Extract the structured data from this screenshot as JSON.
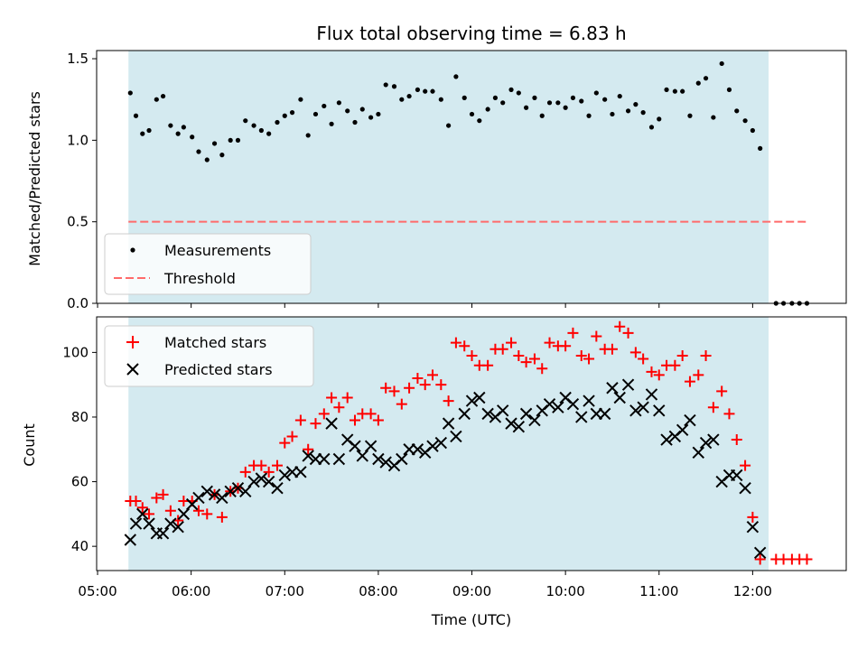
{
  "chart_data": {
    "type": "scatter",
    "title": "Flux total observing time = 6.83 h",
    "xlabel": "Time (UTC)",
    "x_ticks": [
      "05:00",
      "06:00",
      "07:00",
      "08:00",
      "09:00",
      "10:00",
      "11:00",
      "12:00"
    ],
    "xlim_hours": [
      4.99,
      13.0
    ],
    "observing_window_hours": [
      5.33,
      12.17
    ],
    "colors": {
      "window": "#d4eaf0",
      "measurement": "#000000",
      "threshold": "#ff6a6a",
      "matched": "#ff0000",
      "predicted": "#000000"
    },
    "top": {
      "ylabel": "Matched/Predicted stars",
      "ylim": [
        0,
        1.55
      ],
      "y_ticks": [
        "0.0",
        "0.5",
        "1.0",
        "1.5"
      ],
      "threshold_value": 0.5,
      "threshold_x_range": [
        5.33,
        12.6
      ],
      "legend": {
        "measurements": "Measurements",
        "threshold": "Threshold"
      },
      "measurements": [
        [
          5.35,
          1.29
        ],
        [
          5.41,
          1.15
        ],
        [
          5.48,
          1.04
        ],
        [
          5.55,
          1.06
        ],
        [
          5.63,
          1.25
        ],
        [
          5.7,
          1.27
        ],
        [
          5.78,
          1.09
        ],
        [
          5.86,
          1.04
        ],
        [
          5.92,
          1.08
        ],
        [
          6.01,
          1.02
        ],
        [
          6.08,
          0.93
        ],
        [
          6.17,
          0.88
        ],
        [
          6.25,
          0.98
        ],
        [
          6.33,
          0.91
        ],
        [
          6.42,
          1.0
        ],
        [
          6.5,
          1.0
        ],
        [
          6.58,
          1.12
        ],
        [
          6.67,
          1.09
        ],
        [
          6.75,
          1.06
        ],
        [
          6.83,
          1.04
        ],
        [
          6.92,
          1.11
        ],
        [
          7.0,
          1.15
        ],
        [
          7.08,
          1.17
        ],
        [
          7.17,
          1.25
        ],
        [
          7.25,
          1.03
        ],
        [
          7.33,
          1.16
        ],
        [
          7.42,
          1.21
        ],
        [
          7.5,
          1.1
        ],
        [
          7.58,
          1.23
        ],
        [
          7.67,
          1.18
        ],
        [
          7.75,
          1.11
        ],
        [
          7.83,
          1.19
        ],
        [
          7.92,
          1.14
        ],
        [
          8.0,
          1.16
        ],
        [
          8.08,
          1.34
        ],
        [
          8.17,
          1.33
        ],
        [
          8.25,
          1.25
        ],
        [
          8.33,
          1.27
        ],
        [
          8.42,
          1.31
        ],
        [
          8.5,
          1.3
        ],
        [
          8.58,
          1.3
        ],
        [
          8.67,
          1.25
        ],
        [
          8.75,
          1.09
        ],
        [
          8.83,
          1.39
        ],
        [
          8.92,
          1.26
        ],
        [
          9.0,
          1.16
        ],
        [
          9.08,
          1.12
        ],
        [
          9.17,
          1.19
        ],
        [
          9.25,
          1.26
        ],
        [
          9.33,
          1.23
        ],
        [
          9.42,
          1.31
        ],
        [
          9.5,
          1.29
        ],
        [
          9.58,
          1.2
        ],
        [
          9.67,
          1.26
        ],
        [
          9.75,
          1.15
        ],
        [
          9.83,
          1.23
        ],
        [
          9.92,
          1.23
        ],
        [
          10.0,
          1.2
        ],
        [
          10.08,
          1.26
        ],
        [
          10.17,
          1.24
        ],
        [
          10.25,
          1.15
        ],
        [
          10.33,
          1.29
        ],
        [
          10.42,
          1.25
        ],
        [
          10.5,
          1.16
        ],
        [
          10.58,
          1.27
        ],
        [
          10.67,
          1.18
        ],
        [
          10.75,
          1.22
        ],
        [
          10.83,
          1.17
        ],
        [
          10.92,
          1.08
        ],
        [
          11.0,
          1.13
        ],
        [
          11.08,
          1.31
        ],
        [
          11.17,
          1.3
        ],
        [
          11.25,
          1.3
        ],
        [
          11.33,
          1.15
        ],
        [
          11.42,
          1.35
        ],
        [
          11.5,
          1.38
        ],
        [
          11.58,
          1.14
        ],
        [
          11.67,
          1.47
        ],
        [
          11.75,
          1.31
        ],
        [
          11.83,
          1.18
        ],
        [
          11.92,
          1.12
        ],
        [
          12.0,
          1.06
        ],
        [
          12.08,
          0.95
        ],
        [
          12.25,
          0.0
        ],
        [
          12.33,
          0.0
        ],
        [
          12.42,
          0.0
        ],
        [
          12.5,
          0.0
        ],
        [
          12.58,
          0.0
        ]
      ]
    },
    "bottom": {
      "ylabel": "Count",
      "ylim": [
        32.5,
        111
      ],
      "y_ticks": [
        "40",
        "60",
        "80",
        "100"
      ],
      "legend": {
        "matched": "Matched stars",
        "predicted": "Predicted stars"
      },
      "matched": [
        [
          5.35,
          54
        ],
        [
          5.41,
          54
        ],
        [
          5.48,
          52
        ],
        [
          5.55,
          50
        ],
        [
          5.63,
          55
        ],
        [
          5.7,
          56
        ],
        [
          5.78,
          51
        ],
        [
          5.86,
          48
        ],
        [
          5.92,
          54
        ],
        [
          6.01,
          54
        ],
        [
          6.08,
          51
        ],
        [
          6.17,
          50
        ],
        [
          6.25,
          56
        ],
        [
          6.33,
          49
        ],
        [
          6.42,
          57
        ],
        [
          6.5,
          58
        ],
        [
          6.58,
          63
        ],
        [
          6.67,
          65
        ],
        [
          6.75,
          65
        ],
        [
          6.83,
          63
        ],
        [
          6.92,
          65
        ],
        [
          7.0,
          72
        ],
        [
          7.08,
          74
        ],
        [
          7.17,
          79
        ],
        [
          7.25,
          70
        ],
        [
          7.33,
          78
        ],
        [
          7.42,
          81
        ],
        [
          7.5,
          86
        ],
        [
          7.58,
          83
        ],
        [
          7.67,
          86
        ],
        [
          7.75,
          79
        ],
        [
          7.83,
          81
        ],
        [
          7.92,
          81
        ],
        [
          8.0,
          79
        ],
        [
          8.08,
          89
        ],
        [
          8.17,
          88
        ],
        [
          8.25,
          84
        ],
        [
          8.33,
          89
        ],
        [
          8.42,
          92
        ],
        [
          8.5,
          90
        ],
        [
          8.58,
          93
        ],
        [
          8.67,
          90
        ],
        [
          8.75,
          85
        ],
        [
          8.83,
          103
        ],
        [
          8.92,
          102
        ],
        [
          9.0,
          99
        ],
        [
          9.08,
          96
        ],
        [
          9.17,
          96
        ],
        [
          9.25,
          101
        ],
        [
          9.33,
          101
        ],
        [
          9.42,
          103
        ],
        [
          9.5,
          99
        ],
        [
          9.58,
          97
        ],
        [
          9.67,
          98
        ],
        [
          9.75,
          95
        ],
        [
          9.83,
          103
        ],
        [
          9.92,
          102
        ],
        [
          10.0,
          102
        ],
        [
          10.08,
          106
        ],
        [
          10.17,
          99
        ],
        [
          10.25,
          98
        ],
        [
          10.33,
          105
        ],
        [
          10.42,
          101
        ],
        [
          10.5,
          101
        ],
        [
          10.58,
          108
        ],
        [
          10.67,
          106
        ],
        [
          10.75,
          100
        ],
        [
          10.83,
          98
        ],
        [
          10.92,
          94
        ],
        [
          11.0,
          93
        ],
        [
          11.08,
          96
        ],
        [
          11.17,
          96
        ],
        [
          11.25,
          99
        ],
        [
          11.33,
          91
        ],
        [
          11.42,
          93
        ],
        [
          11.5,
          99
        ],
        [
          11.58,
          83
        ],
        [
          11.67,
          88
        ],
        [
          11.75,
          81
        ],
        [
          11.83,
          73
        ],
        [
          11.92,
          65
        ],
        [
          12.0,
          49
        ],
        [
          12.08,
          36
        ],
        [
          12.25,
          36
        ],
        [
          12.33,
          36
        ],
        [
          12.42,
          36
        ],
        [
          12.5,
          36
        ],
        [
          12.58,
          36
        ]
      ],
      "predicted": [
        [
          5.35,
          42
        ],
        [
          5.41,
          47
        ],
        [
          5.48,
          50
        ],
        [
          5.55,
          47
        ],
        [
          5.63,
          44
        ],
        [
          5.7,
          44
        ],
        [
          5.78,
          47
        ],
        [
          5.86,
          46
        ],
        [
          5.92,
          50
        ],
        [
          6.01,
          53
        ],
        [
          6.08,
          55
        ],
        [
          6.17,
          57
        ],
        [
          6.25,
          56
        ],
        [
          6.33,
          55
        ],
        [
          6.42,
          57
        ],
        [
          6.5,
          58
        ],
        [
          6.58,
          57
        ],
        [
          6.67,
          60
        ],
        [
          6.75,
          61
        ],
        [
          6.83,
          60
        ],
        [
          6.92,
          58
        ],
        [
          7.0,
          62
        ],
        [
          7.08,
          63
        ],
        [
          7.17,
          63
        ],
        [
          7.25,
          68
        ],
        [
          7.33,
          67
        ],
        [
          7.42,
          67
        ],
        [
          7.5,
          78
        ],
        [
          7.58,
          67
        ],
        [
          7.67,
          73
        ],
        [
          7.75,
          71
        ],
        [
          7.83,
          68
        ],
        [
          7.92,
          71
        ],
        [
          8.0,
          67
        ],
        [
          8.08,
          66
        ],
        [
          8.17,
          65
        ],
        [
          8.25,
          67
        ],
        [
          8.33,
          70
        ],
        [
          8.42,
          70
        ],
        [
          8.5,
          69
        ],
        [
          8.58,
          71
        ],
        [
          8.67,
          72
        ],
        [
          8.75,
          78
        ],
        [
          8.83,
          74
        ],
        [
          8.92,
          81
        ],
        [
          9.0,
          85
        ],
        [
          9.08,
          86
        ],
        [
          9.17,
          81
        ],
        [
          9.25,
          80
        ],
        [
          9.33,
          82
        ],
        [
          9.42,
          78
        ],
        [
          9.5,
          77
        ],
        [
          9.58,
          81
        ],
        [
          9.67,
          79
        ],
        [
          9.75,
          82
        ],
        [
          9.83,
          84
        ],
        [
          9.92,
          83
        ],
        [
          10.0,
          86
        ],
        [
          10.08,
          84
        ],
        [
          10.17,
          80
        ],
        [
          10.25,
          85
        ],
        [
          10.33,
          81
        ],
        [
          10.42,
          81
        ],
        [
          10.5,
          89
        ],
        [
          10.58,
          86
        ],
        [
          10.67,
          90
        ],
        [
          10.75,
          82
        ],
        [
          10.83,
          83
        ],
        [
          10.92,
          87
        ],
        [
          11.0,
          82
        ],
        [
          11.08,
          73
        ],
        [
          11.17,
          74
        ],
        [
          11.25,
          76
        ],
        [
          11.33,
          79
        ],
        [
          11.42,
          69
        ],
        [
          11.5,
          72
        ],
        [
          11.58,
          73
        ],
        [
          11.67,
          60
        ],
        [
          11.75,
          62
        ],
        [
          11.83,
          62
        ],
        [
          11.92,
          58
        ],
        [
          12.0,
          46
        ],
        [
          12.08,
          38
        ]
      ]
    }
  }
}
